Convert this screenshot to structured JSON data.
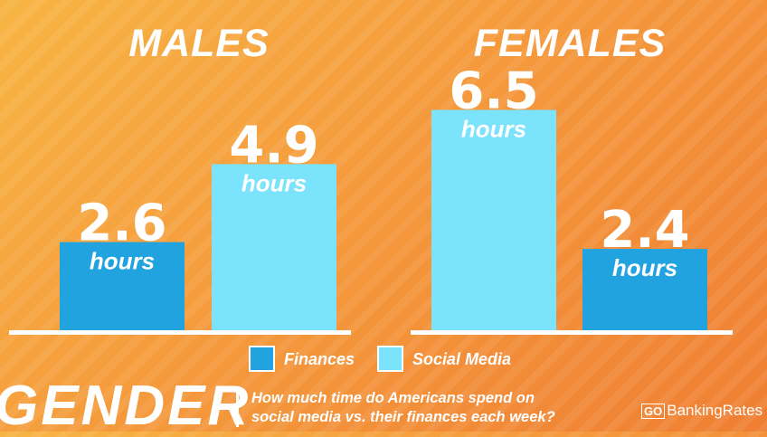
{
  "chart_data": {
    "type": "bar",
    "groups": [
      "MALES",
      "FEMALES"
    ],
    "series": [
      {
        "name": "Finances",
        "color": "#21a3e0",
        "values": [
          2.6,
          2.4
        ]
      },
      {
        "name": "Social Media",
        "color": "#7be3fb",
        "values": [
          4.9,
          6.5
        ]
      }
    ],
    "bar_order": [
      [
        "Finances",
        "Social Media"
      ],
      [
        "Social Media",
        "Finances"
      ]
    ],
    "value_labels": [
      [
        "2.6",
        "4.9"
      ],
      [
        "6.5",
        "2.4"
      ]
    ],
    "unit_label": "hours",
    "ylim": [
      0,
      7.5
    ],
    "grid": false,
    "legend": "bottom-center"
  },
  "footer": {
    "topic": "GENDER",
    "question_line1": "How much time do Americans spend on",
    "question_line2": "social media vs. their finances each week?"
  },
  "brand": {
    "go": "GO",
    "rest": "BankingRates"
  }
}
